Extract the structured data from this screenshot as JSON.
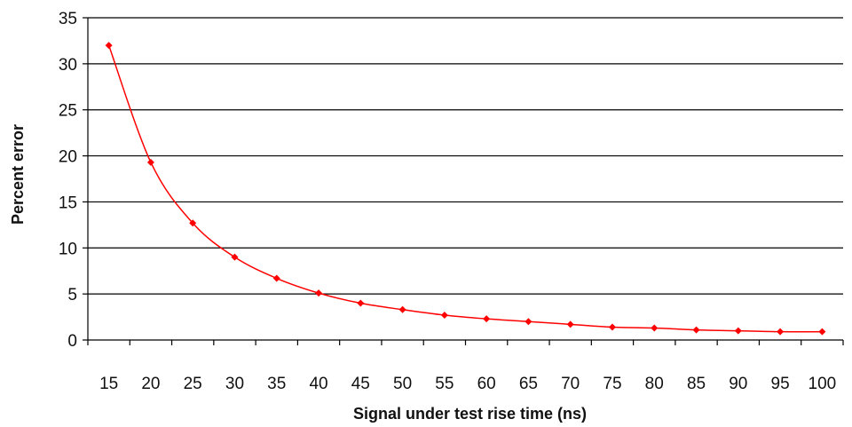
{
  "chart_data": {
    "type": "line",
    "title": "",
    "xlabel": "Signal under test rise time (ns)",
    "ylabel": "Percent error",
    "categories": [
      "15",
      "20",
      "25",
      "30",
      "35",
      "40",
      "45",
      "50",
      "55",
      "60",
      "65",
      "70",
      "75",
      "80",
      "85",
      "90",
      "95",
      "100"
    ],
    "yticks": [
      "0",
      "5",
      "10",
      "15",
      "20",
      "25",
      "30",
      "35"
    ],
    "ylim": [
      0,
      35
    ],
    "grid": true,
    "legend": "none",
    "series": [
      {
        "color": "#ff0000",
        "marker": "diamond",
        "values": [
          32.0,
          19.3,
          12.7,
          9.0,
          6.7,
          5.1,
          4.0,
          3.3,
          2.7,
          2.3,
          2.0,
          1.7,
          1.4,
          1.3,
          1.1,
          1.0,
          0.9,
          0.9
        ]
      }
    ]
  }
}
